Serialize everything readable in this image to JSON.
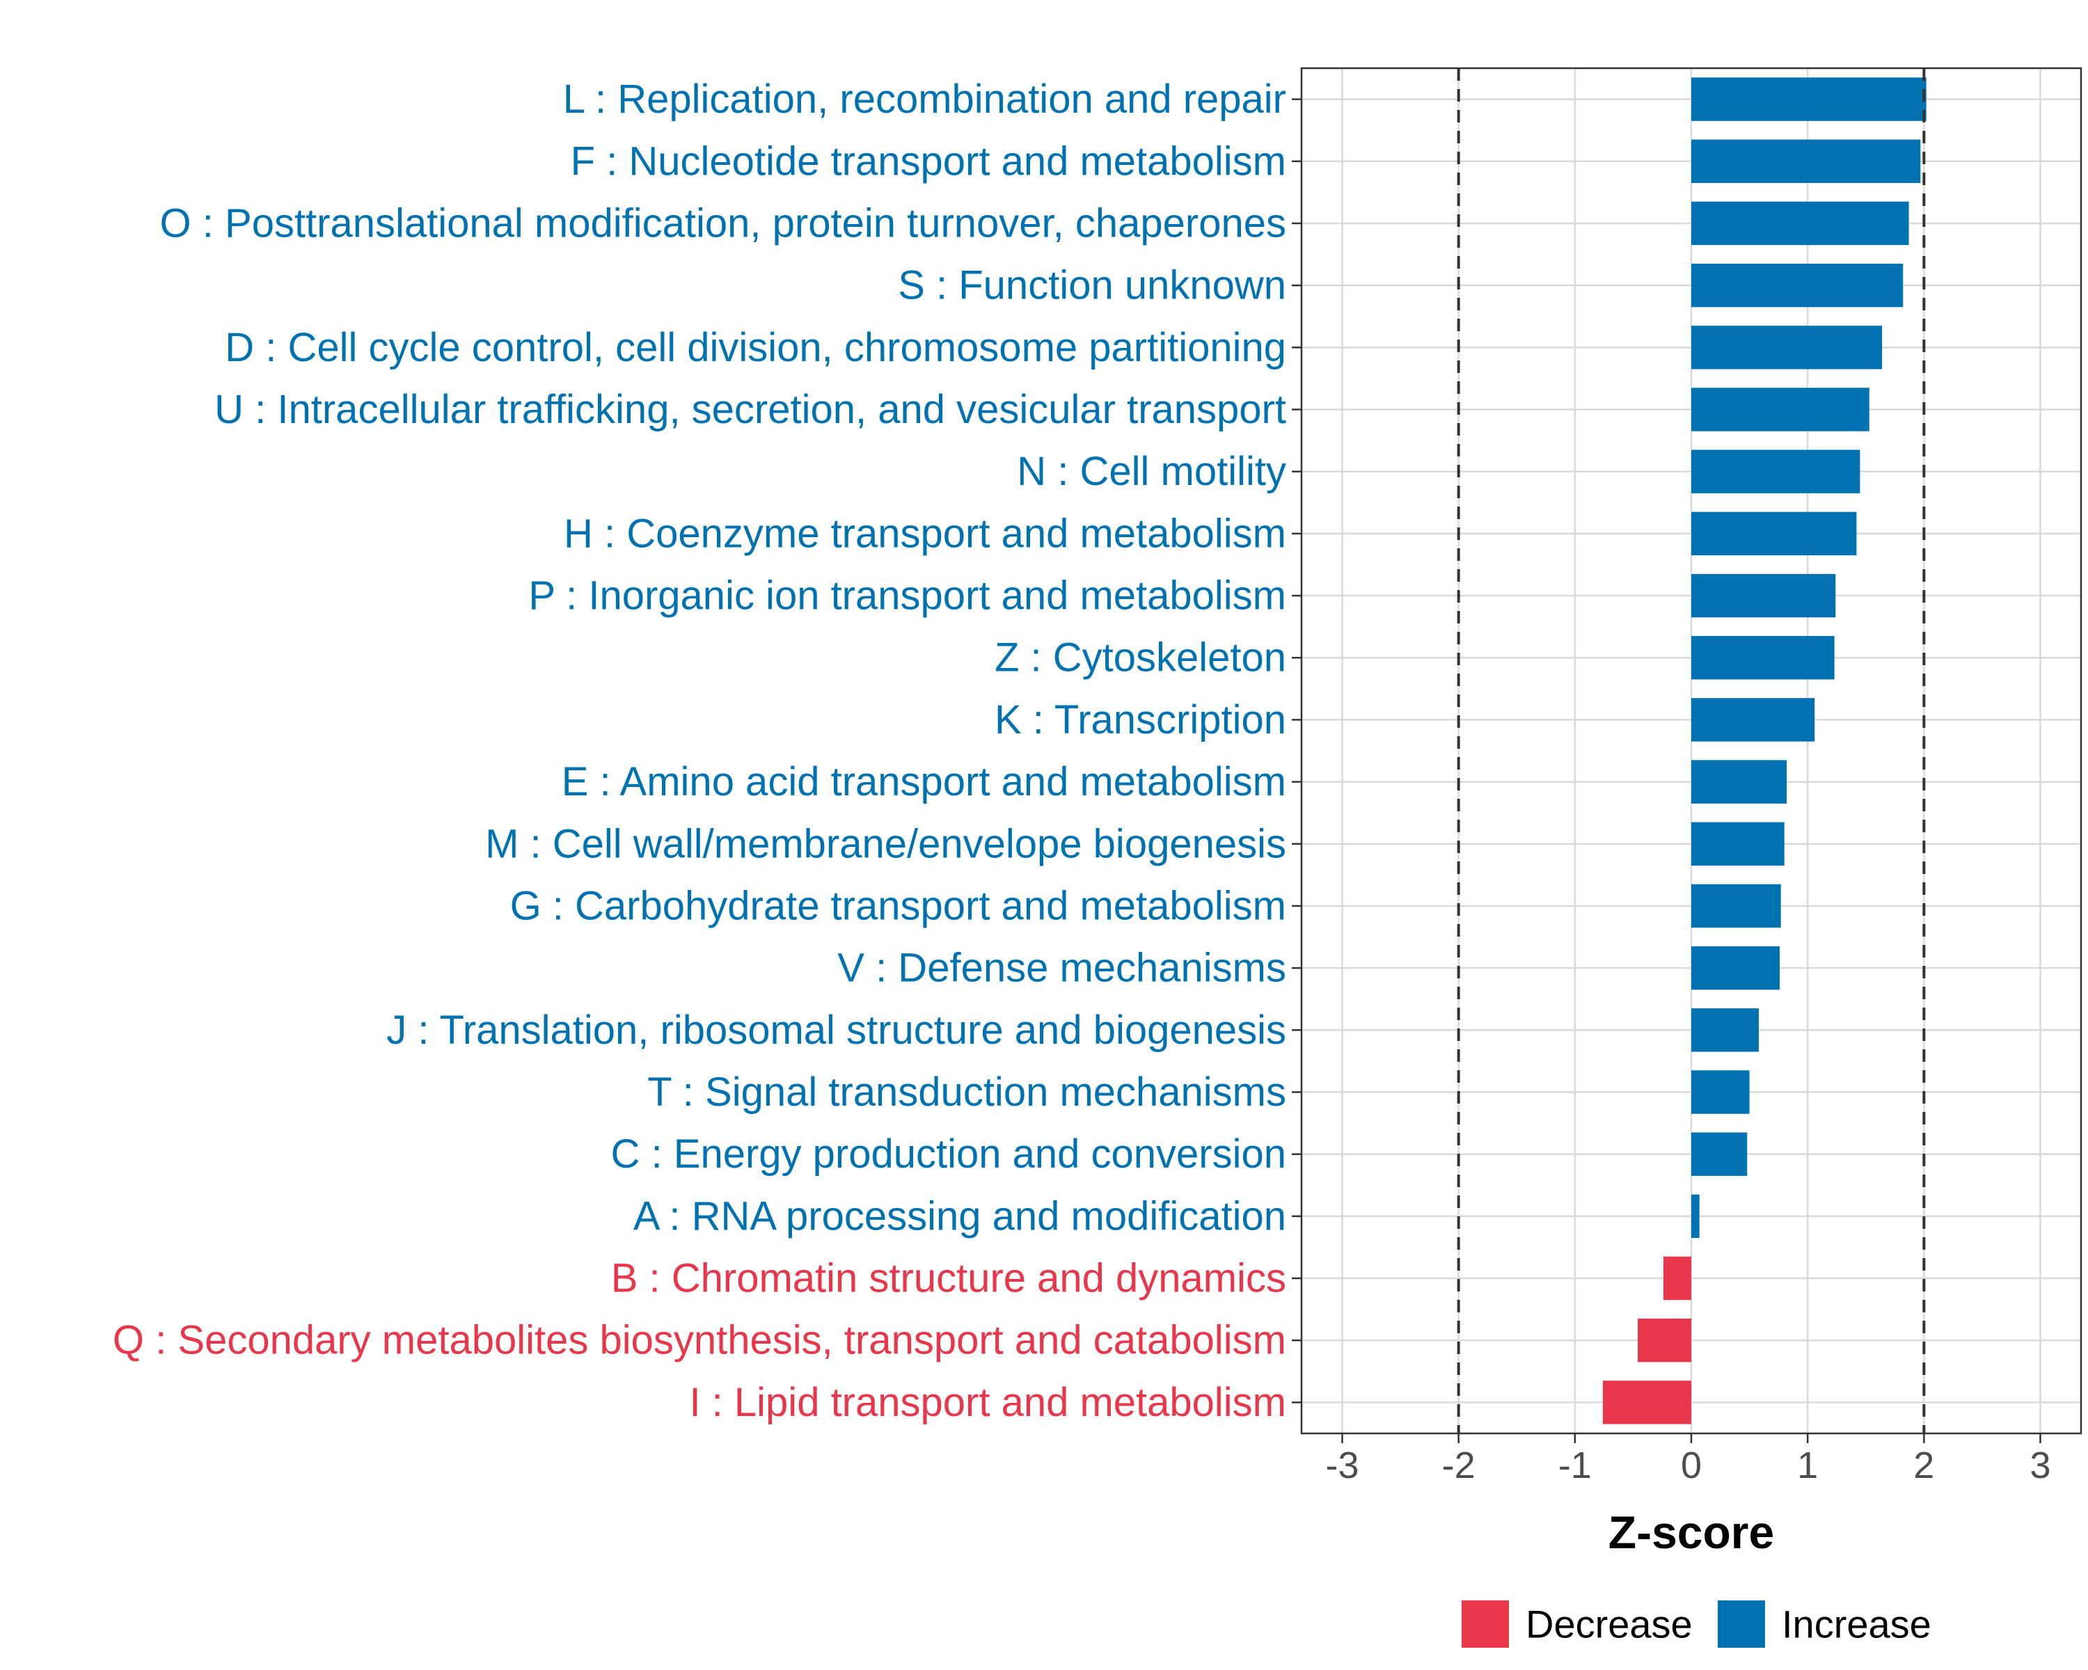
{
  "chart_data": {
    "type": "bar",
    "orientation": "horizontal",
    "xlabel": "Z-score",
    "xlim": [
      -3.35,
      3.35
    ],
    "xticks": [
      -3,
      -2,
      -1,
      0,
      1,
      2,
      3
    ],
    "xtick_labels": [
      "-3",
      "-2",
      "-1",
      "0",
      "1",
      "2",
      "3"
    ],
    "reference_lines": [
      -2,
      2
    ],
    "grid": true,
    "colors": {
      "Increase": "#0072B2",
      "Decrease": "#E8374A"
    },
    "categories": [
      "L : Replication, recombination and repair",
      "F : Nucleotide transport and metabolism",
      "O : Posttranslational modification, protein turnover, chaperones",
      "S : Function unknown",
      "D : Cell cycle control, cell division, chromosome partitioning",
      "U : Intracellular trafficking, secretion, and vesicular transport",
      "N : Cell motility",
      "H : Coenzyme transport and metabolism",
      "P : Inorganic ion transport and metabolism",
      "Z : Cytoskeleton",
      "K : Transcription",
      "E : Amino acid transport and metabolism",
      "M : Cell wall/membrane/envelope biogenesis",
      "G : Carbohydrate transport and metabolism",
      "V : Defense mechanisms",
      "J : Translation, ribosomal structure and biogenesis",
      "T : Signal transduction mechanisms",
      "C : Energy production and conversion",
      "A : RNA processing and modification",
      "B : Chromatin structure and dynamics",
      "Q : Secondary metabolites biosynthesis, transport and catabolism",
      "I : Lipid transport and metabolism"
    ],
    "values": [
      2.02,
      1.97,
      1.87,
      1.82,
      1.64,
      1.53,
      1.45,
      1.42,
      1.24,
      1.23,
      1.06,
      0.82,
      0.8,
      0.77,
      0.76,
      0.58,
      0.5,
      0.48,
      0.07,
      -0.24,
      -0.46,
      -0.76
    ],
    "groups": [
      "Increase",
      "Increase",
      "Increase",
      "Increase",
      "Increase",
      "Increase",
      "Increase",
      "Increase",
      "Increase",
      "Increase",
      "Increase",
      "Increase",
      "Increase",
      "Increase",
      "Increase",
      "Increase",
      "Increase",
      "Increase",
      "Increase",
      "Decrease",
      "Decrease",
      "Decrease"
    ],
    "legend": {
      "position": "bottom",
      "entries": [
        {
          "label": "Decrease",
          "color": "#E8374A"
        },
        {
          "label": "Increase",
          "color": "#0072B2"
        }
      ]
    }
  }
}
